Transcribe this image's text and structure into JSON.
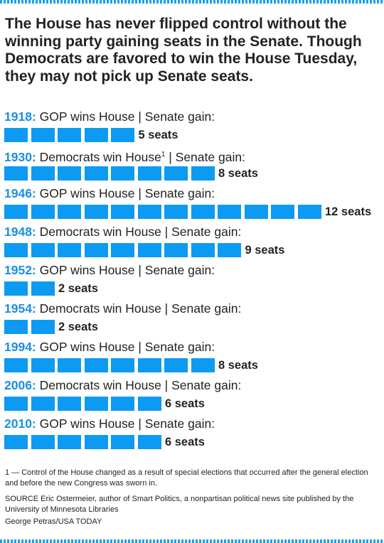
{
  "headline": "The House has never flipped control without the winning party gaining seats in the Senate. Though Democrats are favored to win the House Tuesday, they may not pick up Senate seats.",
  "colors": {
    "accent": "#0d9af2",
    "year": "#1a8fe0",
    "stripe": "#1aa1f2"
  },
  "chart_data": {
    "type": "bar",
    "categories": [
      "1918",
      "1930",
      "1946",
      "1948",
      "1952",
      "1954",
      "1994",
      "2006",
      "2010"
    ],
    "values": [
      5,
      8,
      12,
      9,
      2,
      2,
      8,
      6,
      6
    ],
    "rows": [
      {
        "year": "1918:",
        "text": " GOP wins House | Senate gain:",
        "sup": "",
        "after": "",
        "seats": 5,
        "value_label": "5 seats"
      },
      {
        "year": "1930:",
        "text": " Democrats win House",
        "sup": "1",
        "after": " | Senate gain:",
        "seats": 8,
        "value_label": "8 seats"
      },
      {
        "year": "1946:",
        "text": " GOP wins House | Senate gain:",
        "sup": "",
        "after": "",
        "seats": 12,
        "value_label": "12 seats"
      },
      {
        "year": "1948:",
        "text": " Democrats win House | Senate gain:",
        "sup": "",
        "after": "",
        "seats": 9,
        "value_label": "9 seats"
      },
      {
        "year": "1952:",
        "text": " GOP wins House | Senate gain:",
        "sup": "",
        "after": "",
        "seats": 2,
        "value_label": "2 seats"
      },
      {
        "year": "1954:",
        "text": " Democrats win House | Senate gain:",
        "sup": "",
        "after": "",
        "seats": 2,
        "value_label": "2 seats"
      },
      {
        "year": "1994:",
        "text": " GOP wins House | Senate gain:",
        "sup": "",
        "after": "",
        "seats": 8,
        "value_label": "8 seats"
      },
      {
        "year": "2006:",
        "text": " Democrats win House | Senate gain:",
        "sup": "",
        "after": "",
        "seats": 6,
        "value_label": "6 seats"
      },
      {
        "year": "2010:",
        "text": " GOP wins House | Senate gain:",
        "sup": "",
        "after": "",
        "seats": 6,
        "value_label": "6 seats"
      }
    ]
  },
  "footnote": "1 — Control of the House changed as a result of special elections that occurred after the general election and before the new Congress was sworn in.",
  "source": "SOURCE Eric Ostermeier, author of Smart Politics, a nonpartisan political news site published by the University of Minnesota Libraries",
  "credit": "George Petras/USA TODAY"
}
